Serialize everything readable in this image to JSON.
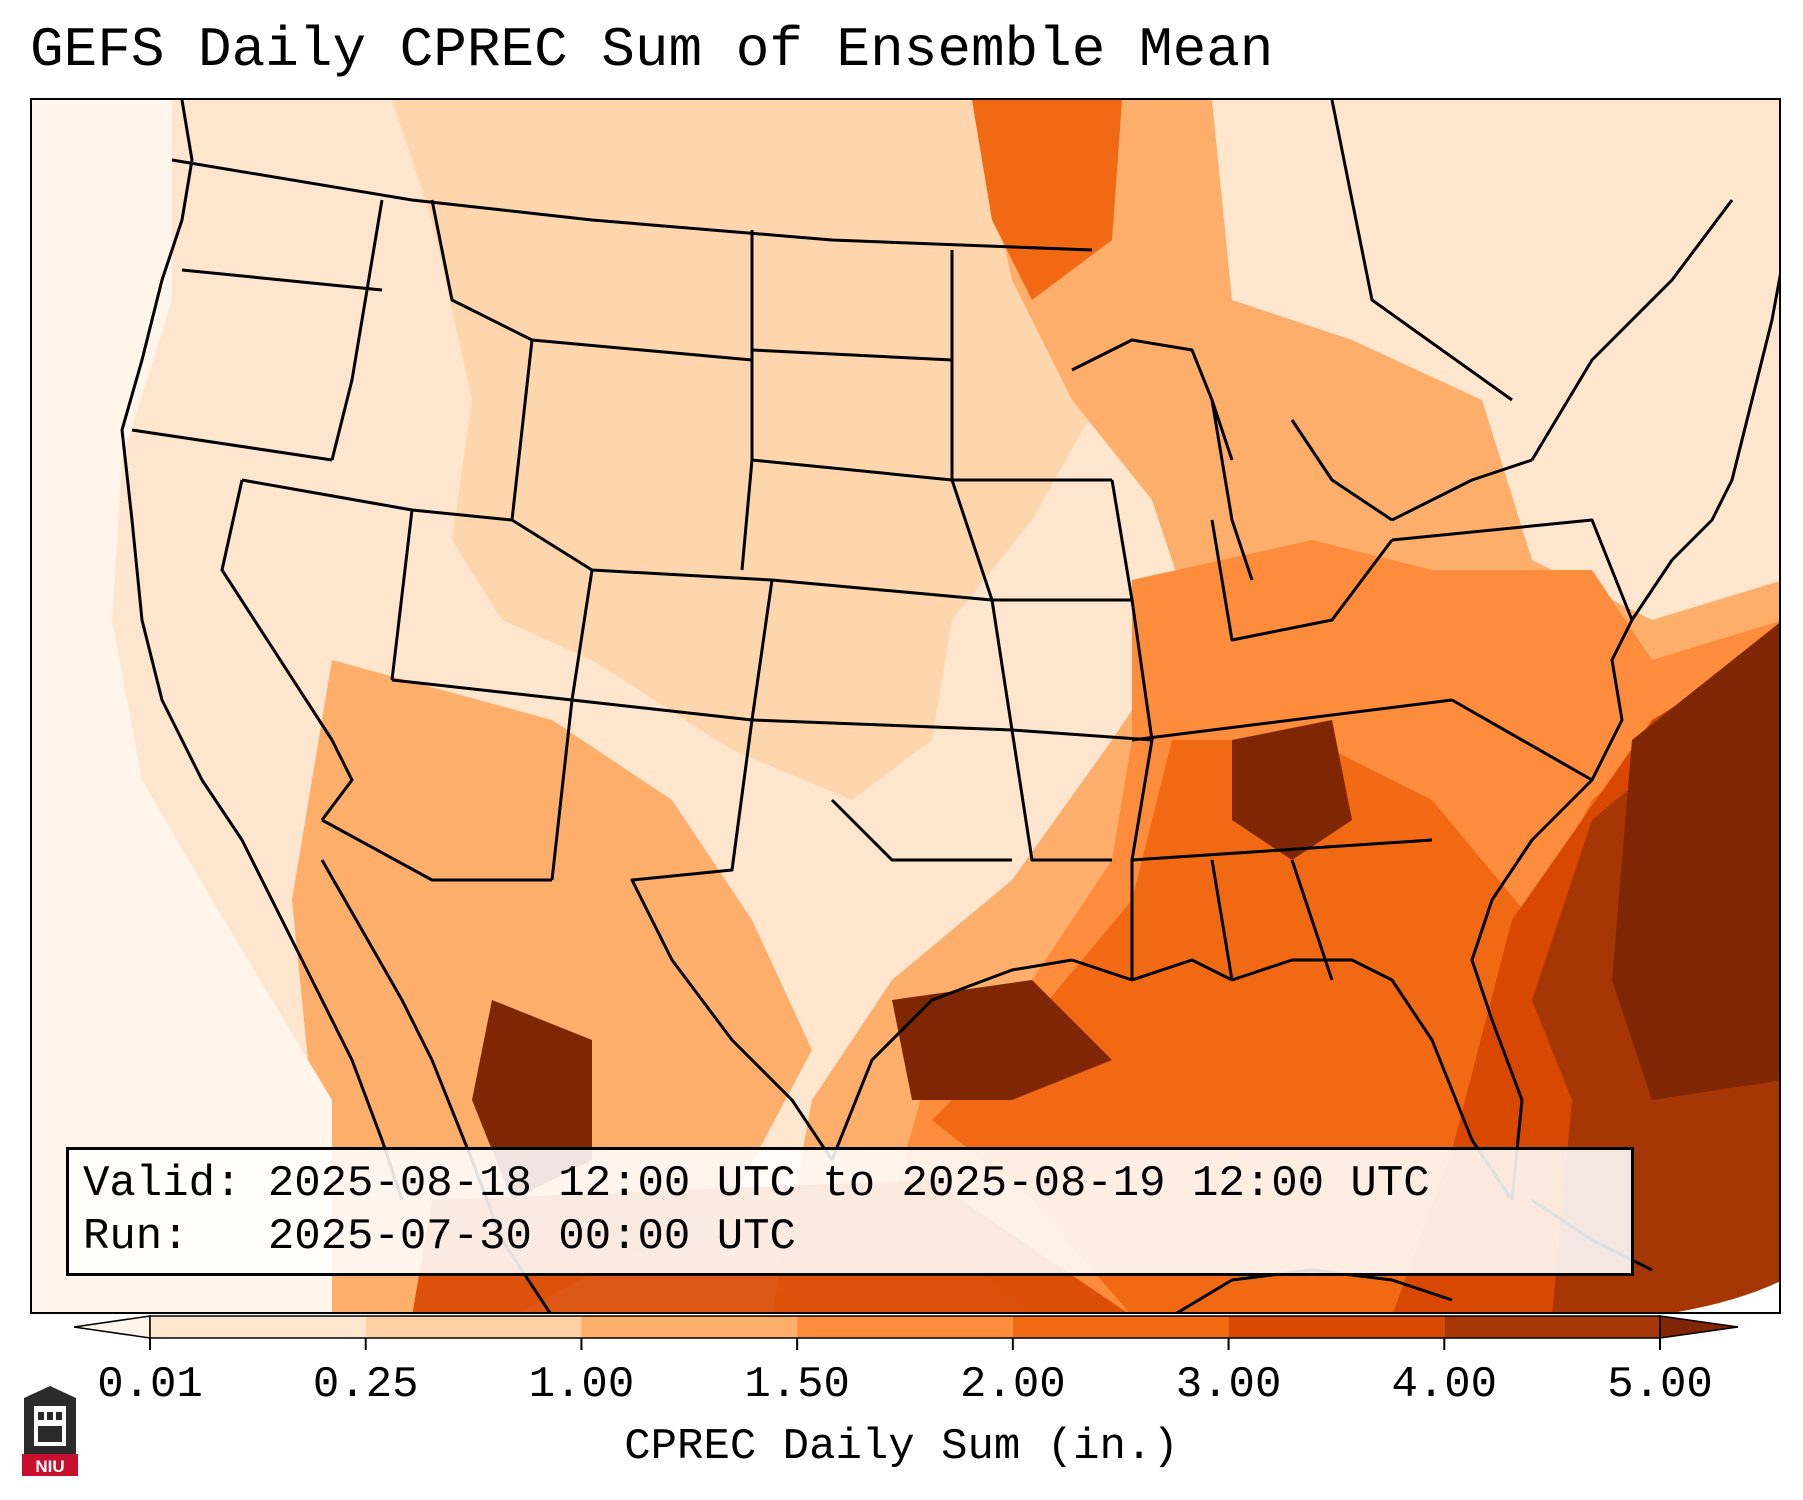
{
  "title": "GEFS Daily CPREC Sum of Ensemble Mean",
  "info": {
    "valid_label": "Valid:",
    "valid_value": "2025-08-18 12:00 UTC to 2025-08-19 12:00 UTC",
    "run_label": "Run:",
    "run_value": "2025-07-30 00:00 UTC"
  },
  "colorbar": {
    "label": "CPREC Daily Sum (in.)",
    "ticks": [
      "0.01",
      "0.25",
      "1.00",
      "1.50",
      "2.00",
      "3.00",
      "4.00",
      "5.00"
    ],
    "colors": [
      "#fee6ce",
      "#fdd0a2",
      "#fdae6b",
      "#fd8d3c",
      "#f16913",
      "#d94801",
      "#a63603"
    ],
    "under_color": "#fff5eb",
    "over_color": "#7f2704"
  },
  "logo": {
    "text": "NIU"
  }
}
